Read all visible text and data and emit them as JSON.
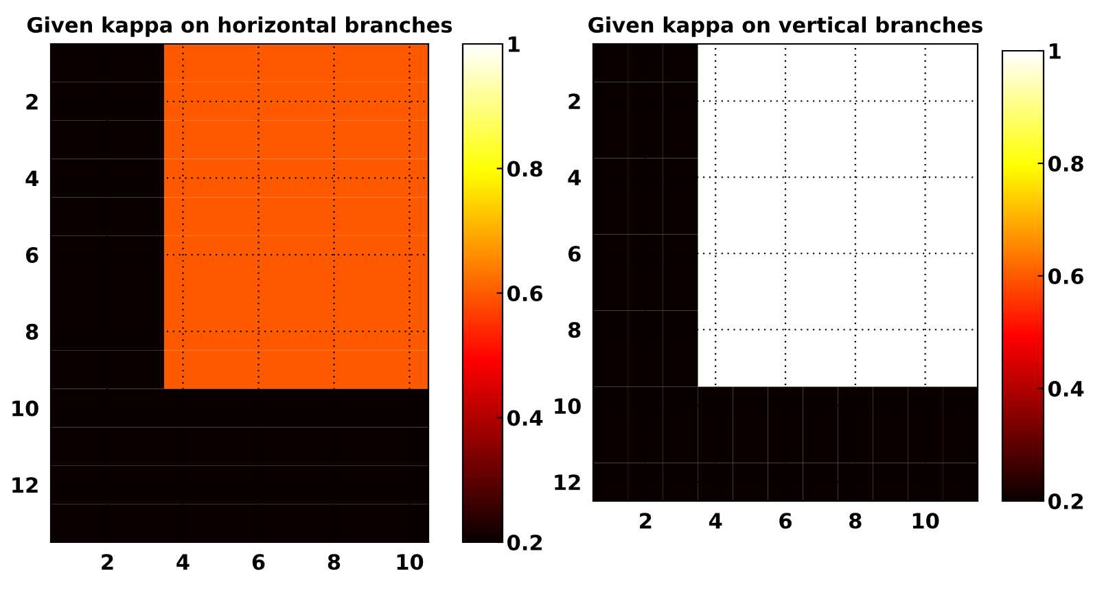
{
  "chart_data": [
    {
      "type": "heatmap",
      "title": "Given kappa on horizontal branches",
      "categories": [
        null,
        "2",
        null,
        "4",
        null,
        "6",
        null,
        "8",
        null,
        "10"
      ],
      "y_categories": [
        null,
        "2",
        null,
        "4",
        null,
        "6",
        null,
        "8",
        null,
        "10",
        null,
        "12",
        null
      ],
      "cells": [
        [
          0.2,
          0.2,
          0.2,
          0.6,
          0.6,
          0.6,
          0.6,
          0.6,
          0.6,
          0.6
        ],
        [
          0.2,
          0.2,
          0.2,
          0.6,
          0.6,
          0.6,
          0.6,
          0.6,
          0.6,
          0.6
        ],
        [
          0.2,
          0.2,
          0.2,
          0.6,
          0.6,
          0.6,
          0.6,
          0.6,
          0.6,
          0.6
        ],
        [
          0.2,
          0.2,
          0.2,
          0.6,
          0.6,
          0.6,
          0.6,
          0.6,
          0.6,
          0.6
        ],
        [
          0.2,
          0.2,
          0.2,
          0.6,
          0.6,
          0.6,
          0.6,
          0.6,
          0.6,
          0.6
        ],
        [
          0.2,
          0.2,
          0.2,
          0.6,
          0.6,
          0.6,
          0.6,
          0.6,
          0.6,
          0.6
        ],
        [
          0.2,
          0.2,
          0.2,
          0.6,
          0.6,
          0.6,
          0.6,
          0.6,
          0.6,
          0.6
        ],
        [
          0.2,
          0.2,
          0.2,
          0.6,
          0.6,
          0.6,
          0.6,
          0.6,
          0.6,
          0.6
        ],
        [
          0.2,
          0.2,
          0.2,
          0.6,
          0.6,
          0.6,
          0.6,
          0.6,
          0.6,
          0.6
        ],
        [
          0.2,
          0.2,
          0.2,
          0.2,
          0.2,
          0.2,
          0.2,
          0.2,
          0.2,
          0.2
        ],
        [
          0.2,
          0.2,
          0.2,
          0.2,
          0.2,
          0.2,
          0.2,
          0.2,
          0.2,
          0.2
        ],
        [
          0.2,
          0.2,
          0.2,
          0.2,
          0.2,
          0.2,
          0.2,
          0.2,
          0.2,
          0.2
        ],
        [
          0.2,
          0.2,
          0.2,
          0.2,
          0.2,
          0.2,
          0.2,
          0.2,
          0.2,
          0.2
        ]
      ],
      "clim": [
        0.2,
        1
      ],
      "cticks": [
        0.2,
        0.4,
        0.6,
        0.8,
        1
      ],
      "grid": true
    },
    {
      "type": "heatmap",
      "title": "Given kappa on vertical branches",
      "categories": [
        null,
        "2",
        null,
        "4",
        null,
        "6",
        null,
        "8",
        null,
        "10",
        null
      ],
      "y_categories": [
        null,
        "2",
        null,
        "4",
        null,
        "6",
        null,
        "8",
        null,
        "10",
        null,
        "12"
      ],
      "cells": [
        [
          0.2,
          0.2,
          0.2,
          1,
          1,
          1,
          1,
          1,
          1,
          1,
          1
        ],
        [
          0.2,
          0.2,
          0.2,
          1,
          1,
          1,
          1,
          1,
          1,
          1,
          1
        ],
        [
          0.2,
          0.2,
          0.2,
          1,
          1,
          1,
          1,
          1,
          1,
          1,
          1
        ],
        [
          0.2,
          0.2,
          0.2,
          1,
          1,
          1,
          1,
          1,
          1,
          1,
          1
        ],
        [
          0.2,
          0.2,
          0.2,
          1,
          1,
          1,
          1,
          1,
          1,
          1,
          1
        ],
        [
          0.2,
          0.2,
          0.2,
          1,
          1,
          1,
          1,
          1,
          1,
          1,
          1
        ],
        [
          0.2,
          0.2,
          0.2,
          1,
          1,
          1,
          1,
          1,
          1,
          1,
          1
        ],
        [
          0.2,
          0.2,
          0.2,
          1,
          1,
          1,
          1,
          1,
          1,
          1,
          1
        ],
        [
          0.2,
          0.2,
          0.2,
          1,
          1,
          1,
          1,
          1,
          1,
          1,
          1
        ],
        [
          0.2,
          0.2,
          0.2,
          0.2,
          0.2,
          0.2,
          0.2,
          0.2,
          0.2,
          0.2,
          0.2
        ],
        [
          0.2,
          0.2,
          0.2,
          0.2,
          0.2,
          0.2,
          0.2,
          0.2,
          0.2,
          0.2,
          0.2
        ],
        [
          0.2,
          0.2,
          0.2,
          0.2,
          0.2,
          0.2,
          0.2,
          0.2,
          0.2,
          0.2,
          0.2
        ]
      ],
      "clim": [
        0.2,
        1
      ],
      "cticks": [
        0.2,
        0.4,
        0.6,
        0.8,
        1
      ],
      "grid": true
    }
  ]
}
